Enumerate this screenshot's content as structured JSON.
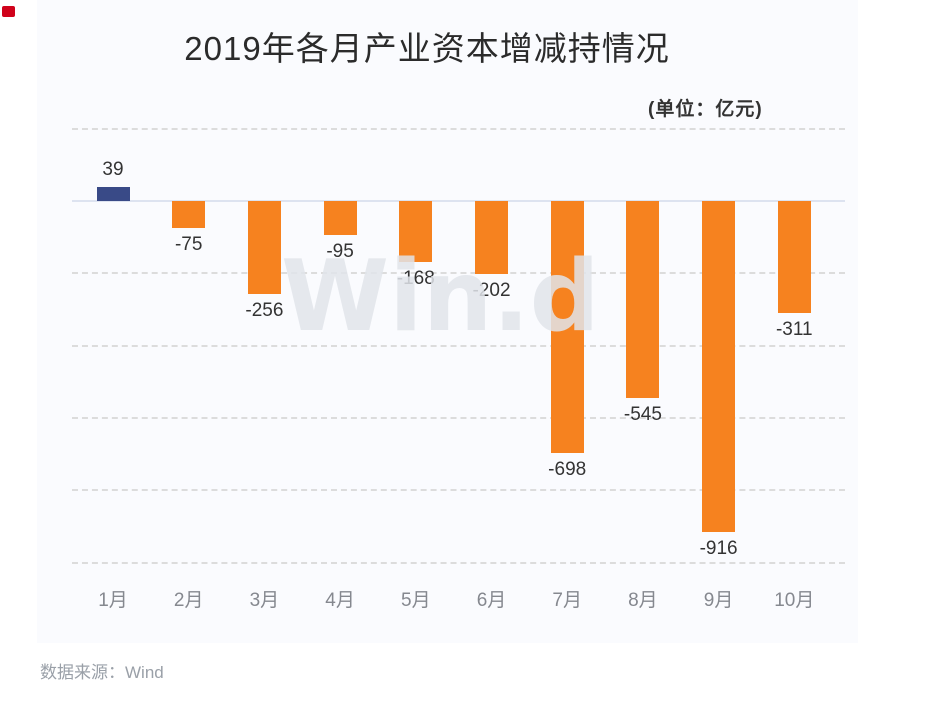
{
  "page": {
    "corner_mark_color": "#d0021b"
  },
  "chart": {
    "title": "2019年各月产业资本增减持情况",
    "unit_label": "(单位：亿元)",
    "watermark": "Win.d",
    "source_label": "数据来源：Wind",
    "chart_data": {
      "type": "bar",
      "categories": [
        "1月",
        "2月",
        "3月",
        "4月",
        "5月",
        "6月",
        "7月",
        "8月",
        "9月",
        "10月"
      ],
      "values": [
        39,
        -75,
        -256,
        -95,
        -168,
        -202,
        -698,
        -545,
        -916,
        -311
      ],
      "title": "2019年各月产业资本增减持情况",
      "xlabel": "",
      "ylabel": "",
      "unit": "亿元",
      "ylim": [
        -1000,
        200
      ],
      "gridlines": [
        200,
        -200,
        -400,
        -600,
        -800,
        -1000
      ],
      "grid": "dashed",
      "legend": "none",
      "value_labels": true,
      "colors": {
        "positive": "#394a87",
        "negative": "#f6821f"
      }
    }
  }
}
